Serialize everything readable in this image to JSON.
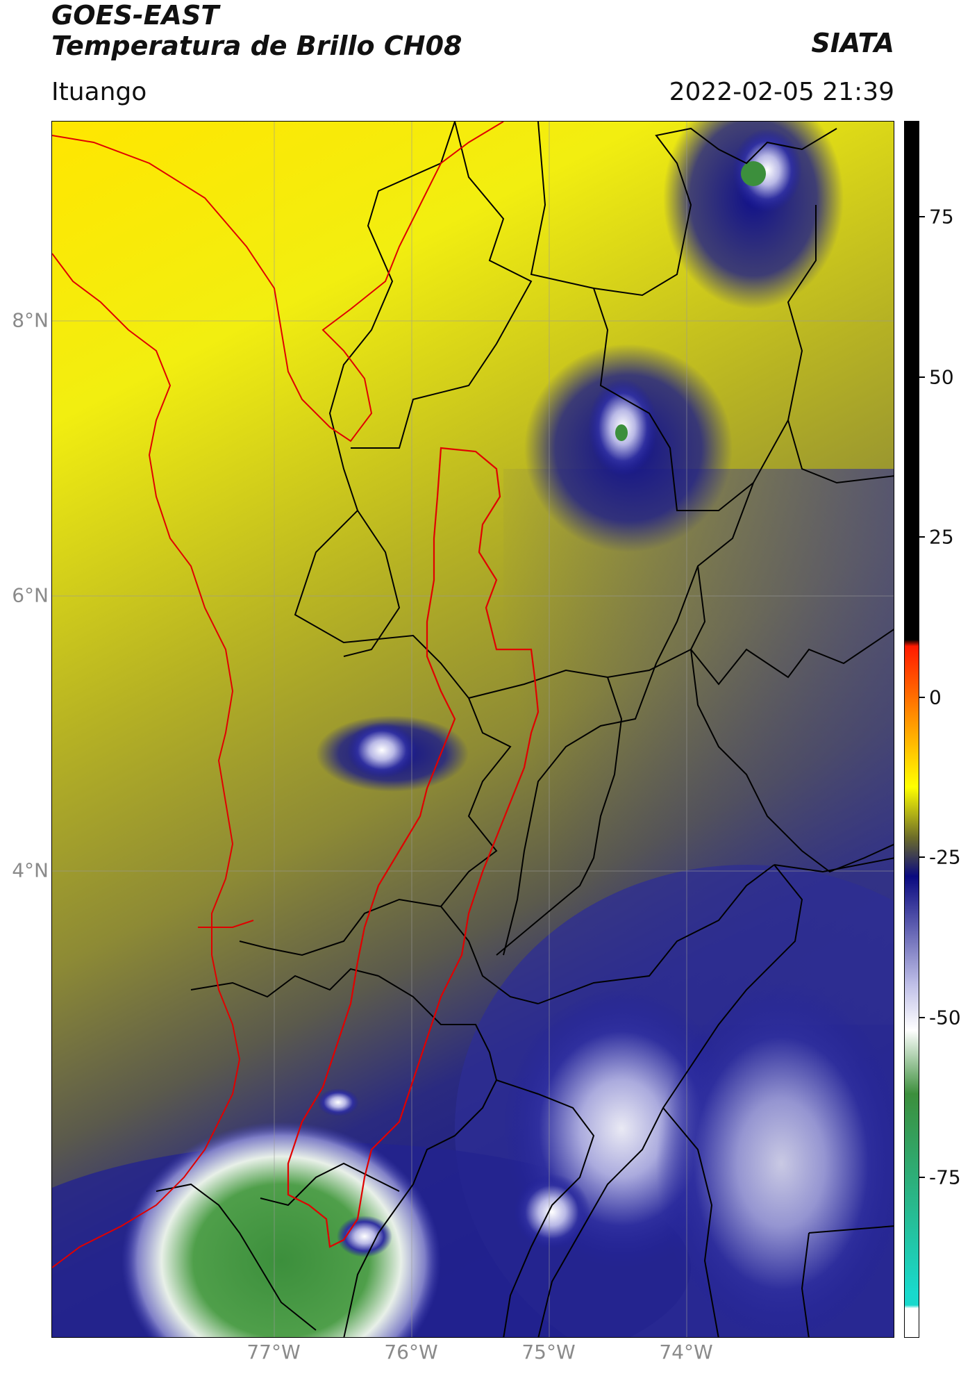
{
  "header": {
    "title_line1": "GOES-EAST",
    "title_line2": "Temperatura de Brillo CH08",
    "organization": "SIATA",
    "subtitle": "Ituango",
    "timestamp": "2022-02-05 21:39"
  },
  "map": {
    "longitude_labels": [
      "77°W",
      "76°W",
      "75°W",
      "74°W"
    ],
    "latitude_labels": [
      "8°N",
      "6°N",
      "4°N"
    ],
    "gridlines": true,
    "basin_outline_color": "#e00000",
    "coastline_color": "#e00000",
    "boundary_color": "#000000"
  },
  "colorbar": {
    "tick_labels": [
      "75",
      "50",
      "25",
      "0",
      "-25",
      "-50",
      "-75"
    ],
    "tick_values": [
      75,
      50,
      25,
      0,
      -25,
      -50,
      -75
    ],
    "range": [
      -100,
      90
    ],
    "colors": {
      "black": "#000000",
      "red": "#ff1a00",
      "orange": "#ff9900",
      "yellow": "#ffff00",
      "olive": "#6b6b2a",
      "navy": "#0a0a80",
      "lavender": "#c0c0e8",
      "white": "#ffffff",
      "green": "#3c8f3c",
      "cyan": "#19d9cc"
    }
  }
}
